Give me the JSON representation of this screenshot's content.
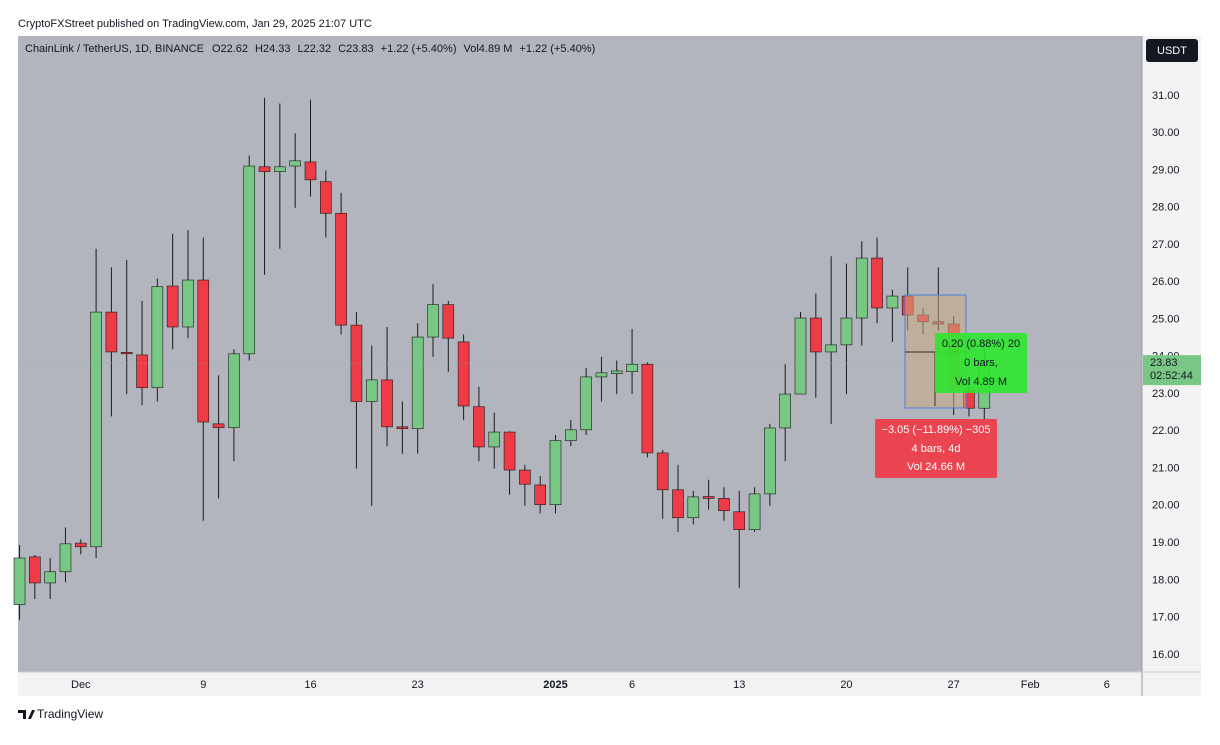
{
  "header": "CryptoFXStreet published on TradingView.com, Jan 29, 2025 21:07 UTC",
  "footer": "TradingView",
  "currency_button": "USDT",
  "chart_data": {
    "type": "candlestick",
    "legend_symbol": "ChainLink / TetherUS, 1D, BINANCE",
    "legend_items": [
      "O22.62",
      "H24.33",
      "L22.32",
      "C23.83",
      "+1.22 (+5.40%)",
      "Vol4.89 M",
      "+1.22 (+5.40%)"
    ],
    "x": [
      -4,
      -3,
      -2,
      -1,
      0,
      1,
      2,
      3,
      4,
      5,
      6,
      7,
      8,
      9,
      10,
      11,
      12,
      13,
      14,
      15,
      16,
      17,
      18,
      19,
      20,
      21,
      22,
      23,
      24,
      25,
      26,
      27,
      28,
      29,
      30,
      31,
      32,
      33,
      34,
      35,
      36,
      37,
      38,
      39,
      40,
      41,
      42,
      43,
      44,
      45,
      46,
      47,
      48,
      49,
      50,
      51,
      52,
      53,
      54,
      55,
      56,
      57,
      58,
      59
    ],
    "open": [
      17.35,
      18.63,
      17.93,
      18.23,
      19.0,
      18.9,
      25.2,
      24.12,
      24.05,
      23.17,
      25.9,
      24.8,
      26.06,
      22.2,
      22.1,
      24.08,
      29.1,
      28.97,
      29.12,
      29.23,
      28.7,
      27.85,
      24.85,
      22.8,
      23.38,
      22.12,
      22.07,
      24.53,
      25.4,
      24.4,
      22.66,
      21.58,
      21.98,
      20.96,
      20.56,
      20.03,
      21.75,
      22.04,
      23.46,
      23.55,
      23.6,
      23.8,
      21.42,
      20.43,
      19.68,
      20.25,
      20.2,
      19.84,
      19.36,
      20.32,
      22.09,
      23.0,
      25.04,
      24.13,
      24.32,
      25.04,
      26.65,
      25.31,
      25.63,
      25.12,
      24.94,
      24.88,
      23.1,
      22.62
    ],
    "high": [
      18.95,
      18.68,
      18.6,
      19.42,
      19.1,
      26.9,
      26.4,
      26.6,
      25.5,
      26.1,
      27.3,
      27.4,
      27.2,
      23.5,
      24.2,
      29.4,
      30.95,
      30.8,
      30.0,
      30.9,
      29.0,
      28.4,
      25.2,
      24.3,
      24.8,
      22.8,
      24.9,
      25.95,
      25.5,
      24.6,
      23.2,
      22.5,
      22.0,
      21.1,
      20.8,
      21.9,
      22.3,
      23.7,
      24.0,
      23.9,
      24.75,
      23.85,
      21.5,
      21.1,
      20.4,
      20.7,
      20.5,
      20.4,
      20.5,
      22.2,
      23.8,
      25.2,
      25.7,
      26.7,
      26.5,
      27.1,
      27.2,
      25.8,
      26.4,
      25.3,
      26.4,
      25.1,
      23.4,
      24.33
    ],
    "low": [
      16.94,
      17.5,
      17.5,
      17.95,
      18.7,
      18.6,
      22.4,
      23.0,
      22.7,
      22.8,
      24.2,
      24.5,
      19.6,
      20.2,
      21.2,
      23.9,
      26.2,
      26.9,
      28.0,
      28.3,
      27.2,
      24.6,
      21.0,
      20.0,
      21.6,
      21.4,
      21.4,
      24.0,
      23.6,
      22.3,
      21.2,
      21.0,
      20.3,
      20.0,
      19.8,
      19.8,
      21.6,
      21.9,
      22.8,
      23.0,
      23.0,
      21.3,
      19.65,
      19.3,
      19.5,
      19.9,
      19.6,
      17.8,
      19.3,
      20.0,
      21.2,
      23.0,
      22.9,
      22.2,
      23.0,
      24.3,
      24.9,
      24.4,
      24.7,
      24.6,
      24.7,
      22.44,
      22.4,
      22.32
    ],
    "close": [
      18.6,
      17.93,
      18.23,
      18.98,
      18.9,
      25.2,
      24.13,
      24.1,
      23.17,
      25.88,
      24.8,
      26.06,
      22.25,
      22.1,
      24.08,
      29.12,
      28.97,
      29.1,
      29.26,
      28.75,
      27.85,
      24.85,
      22.8,
      23.38,
      22.12,
      22.07,
      24.53,
      25.4,
      24.5,
      22.68,
      21.58,
      21.98,
      20.96,
      20.58,
      20.03,
      21.75,
      22.04,
      23.46,
      23.57,
      23.62,
      23.8,
      21.42,
      20.43,
      19.68,
      20.24,
      20.2,
      19.87,
      19.36,
      20.32,
      22.09,
      23.0,
      25.04,
      24.13,
      24.32,
      25.04,
      26.65,
      25.31,
      25.63,
      25.12,
      24.94,
      24.88,
      23.1,
      22.62,
      23.83
    ],
    "up_color": "#79c785",
    "down_color": "#ef3b46",
    "wick_color": "#1a1a1a",
    "xlim": [
      -4.1,
      69.3
    ],
    "xticks": [
      {
        "value": 0,
        "label": "Dec"
      },
      {
        "value": 8,
        "label": "9"
      },
      {
        "value": 15,
        "label": "16"
      },
      {
        "value": 22,
        "label": "23"
      },
      {
        "value": 31,
        "label": "2025"
      },
      {
        "value": 36,
        "label": "6"
      },
      {
        "value": 43,
        "label": "13"
      },
      {
        "value": 50,
        "label": "20"
      },
      {
        "value": 57,
        "label": "27"
      },
      {
        "value": 62,
        "label": "Feb"
      },
      {
        "value": 67,
        "label": "6"
      }
    ],
    "ylim": [
      15.54,
      32.61
    ],
    "yticks": [
      {
        "value": 16,
        "label": "16.00"
      },
      {
        "value": 17,
        "label": "17.00"
      },
      {
        "value": 18,
        "label": "18.00"
      },
      {
        "value": 19,
        "label": "19.00"
      },
      {
        "value": 20,
        "label": "20.00"
      },
      {
        "value": 21,
        "label": "21.00"
      },
      {
        "value": 22,
        "label": "22.00"
      },
      {
        "value": 23,
        "label": "23.00"
      },
      {
        "value": 24,
        "label": "24.00"
      },
      {
        "value": 25,
        "label": "25.00"
      },
      {
        "value": 26,
        "label": "26.00"
      },
      {
        "value": 27,
        "label": "27.00"
      },
      {
        "value": 28,
        "label": "28.00"
      },
      {
        "value": 29,
        "label": "29.00"
      },
      {
        "value": 30,
        "label": "30.00"
      },
      {
        "value": 31,
        "label": "31.00"
      }
    ],
    "grid": false,
    "price_marker": {
      "value": 23.83,
      "label": "23.83",
      "countdown": "02:52:44"
    },
    "measure_up": [
      "0.20 (0.88%) 20",
      "0 bars,",
      "Vol 4.89 M"
    ],
    "measure_down": [
      "−3.05 (−11.89%) −305",
      "4 bars, 4d",
      "Vol 24.66 M"
    ]
  }
}
